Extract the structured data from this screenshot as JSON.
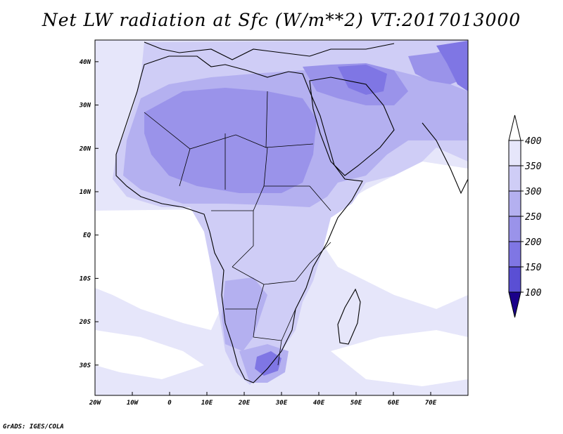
{
  "title": "Net LW radiation at Sfc (W/m**2) VT:2017013000",
  "credit": "GrADS: IGES/COLA",
  "map": {
    "lon_range": [
      -20,
      80
    ],
    "lat_range": [
      -37,
      45
    ],
    "x_ticks": [
      "20W",
      "10W",
      "0",
      "10E",
      "20E",
      "30E",
      "40E",
      "50E",
      "60E",
      "70E"
    ],
    "y_ticks": [
      "40N",
      "30N",
      "20N",
      "10N",
      "EQ",
      "10S",
      "20S",
      "30S"
    ]
  },
  "colorbar": {
    "levels": [
      "400",
      "350",
      "300",
      "250",
      "200",
      "150",
      "100"
    ],
    "colors": [
      "#e6e6fa",
      "#cfcdf6",
      "#b4b0f0",
      "#9a93ea",
      "#7f76e4",
      "#5a4fd4",
      "#3a22b4",
      "#1a008a"
    ]
  }
}
